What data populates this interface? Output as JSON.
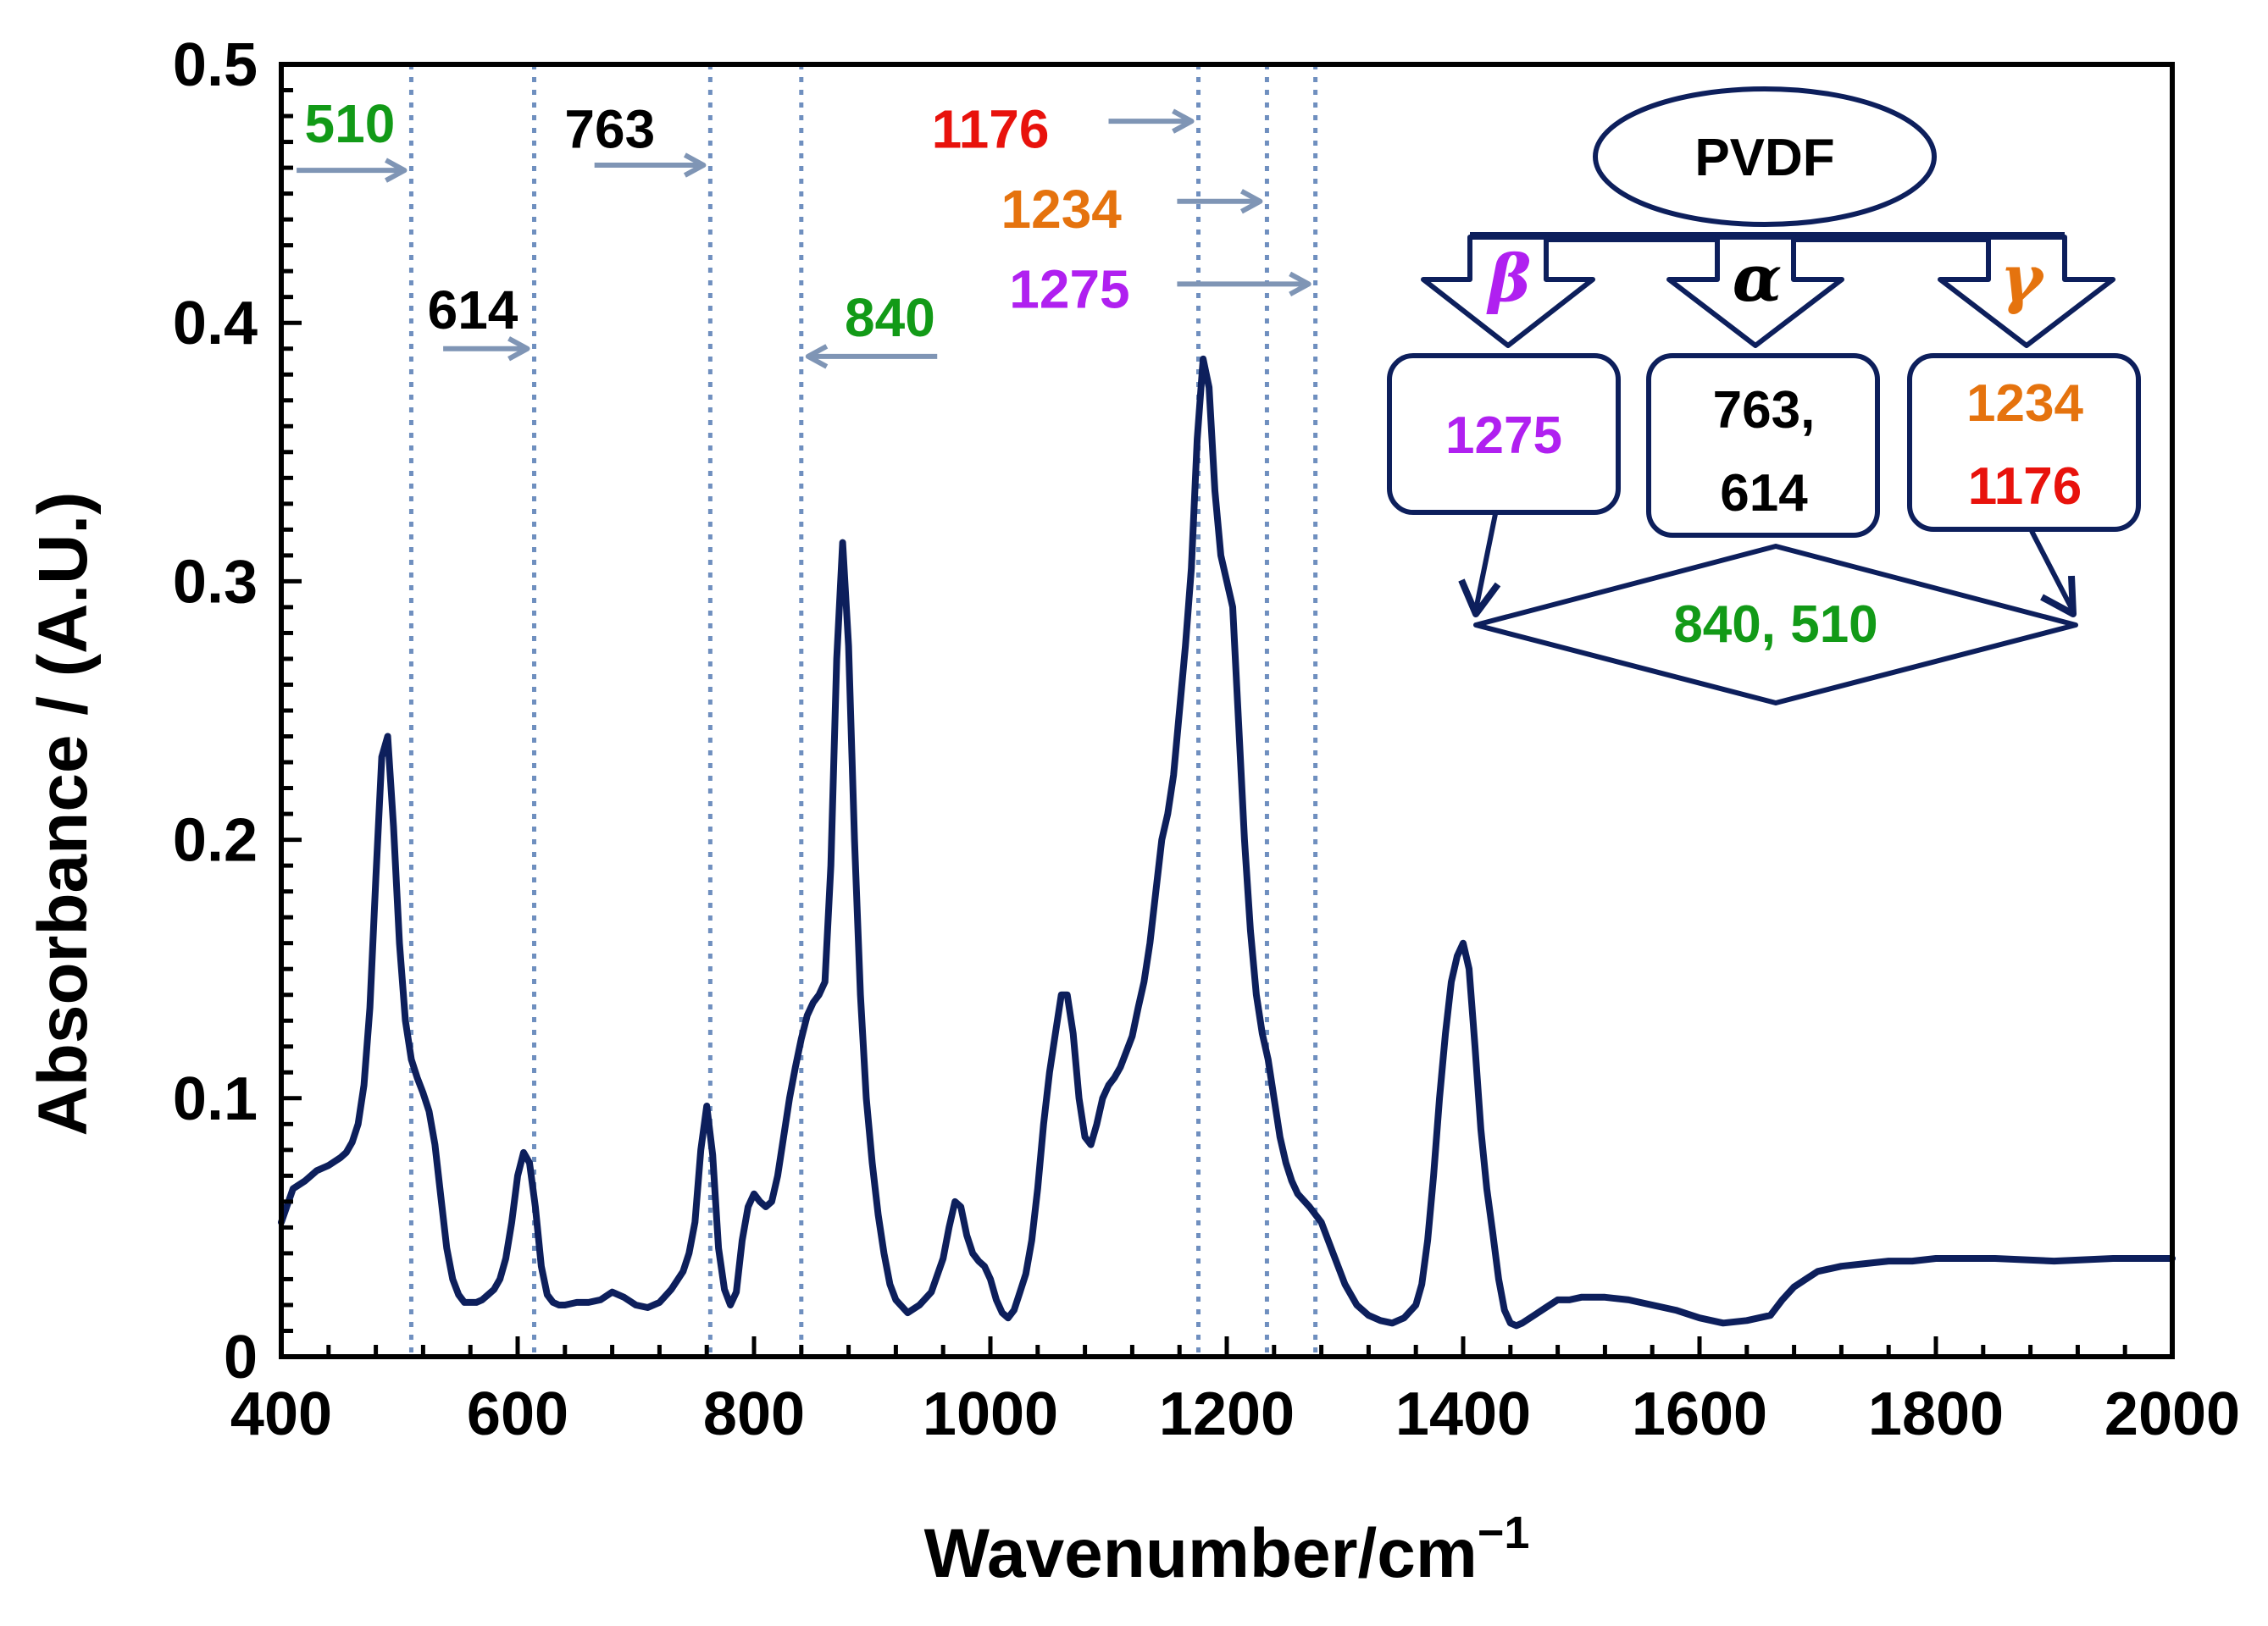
{
  "chart_data": {
    "type": "line",
    "title": "",
    "xlabel": "Wavenumber/cm",
    "xlabel_superscript": "−1",
    "ylabel": "Absorbance / (A.U.)",
    "xlim": [
      400,
      2000
    ],
    "ylim": [
      0,
      0.5
    ],
    "x_ticks": [
      400,
      600,
      800,
      1000,
      1200,
      1400,
      1600,
      1800,
      2000
    ],
    "x_tick_labels": [
      "400",
      "600",
      "800",
      "1000",
      "1200",
      "1400",
      "1600",
      "1800",
      "2000"
    ],
    "y_ticks": [
      0,
      0.1,
      0.2,
      0.3,
      0.4,
      0.5
    ],
    "y_tick_labels": [
      "0",
      "0.1",
      "0.2",
      "0.3",
      "0.4",
      "0.5"
    ],
    "grid": false,
    "series": [
      {
        "name": "PVDF",
        "color": "#0d1f5c",
        "x": [
          400,
          410,
          420,
          430,
          440,
          450,
          455,
          460,
          465,
          470,
          475,
          480,
          485,
          490,
          495,
          500,
          505,
          510,
          515,
          520,
          525,
          530,
          535,
          540,
          545,
          550,
          555,
          560,
          565,
          570,
          575,
          580,
          585,
          590,
          595,
          600,
          605,
          610,
          615,
          620,
          625,
          630,
          635,
          640,
          650,
          660,
          670,
          680,
          690,
          700,
          710,
          720,
          730,
          740,
          745,
          750,
          755,
          760,
          765,
          770,
          775,
          780,
          785,
          790,
          795,
          800,
          805,
          810,
          815,
          820,
          825,
          830,
          835,
          840,
          845,
          850,
          855,
          860,
          865,
          870,
          875,
          880,
          885,
          890,
          895,
          900,
          905,
          910,
          915,
          920,
          930,
          940,
          950,
          960,
          965,
          970,
          975,
          980,
          985,
          990,
          995,
          1000,
          1005,
          1010,
          1015,
          1020,
          1025,
          1030,
          1035,
          1040,
          1045,
          1050,
          1055,
          1060,
          1065,
          1070,
          1075,
          1080,
          1085,
          1090,
          1095,
          1100,
          1105,
          1110,
          1115,
          1120,
          1125,
          1130,
          1135,
          1140,
          1145,
          1150,
          1155,
          1160,
          1165,
          1170,
          1175,
          1180,
          1185,
          1190,
          1195,
          1200,
          1205,
          1210,
          1215,
          1220,
          1225,
          1230,
          1235,
          1240,
          1245,
          1250,
          1255,
          1260,
          1270,
          1280,
          1290,
          1300,
          1310,
          1320,
          1330,
          1340,
          1350,
          1360,
          1365,
          1370,
          1375,
          1380,
          1385,
          1390,
          1395,
          1400,
          1405,
          1410,
          1415,
          1420,
          1425,
          1430,
          1435,
          1440,
          1445,
          1450,
          1460,
          1470,
          1480,
          1490,
          1500,
          1520,
          1540,
          1560,
          1580,
          1600,
          1620,
          1640,
          1660,
          1670,
          1680,
          1690,
          1700,
          1720,
          1740,
          1760,
          1780,
          1800,
          1850,
          1900,
          1950,
          2000
        ],
        "y": [
          0.052,
          0.065,
          0.068,
          0.072,
          0.074,
          0.077,
          0.079,
          0.083,
          0.09,
          0.105,
          0.135,
          0.185,
          0.232,
          0.24,
          0.205,
          0.16,
          0.13,
          0.115,
          0.108,
          0.102,
          0.095,
          0.082,
          0.062,
          0.042,
          0.03,
          0.024,
          0.021,
          0.021,
          0.021,
          0.022,
          0.024,
          0.026,
          0.03,
          0.038,
          0.052,
          0.07,
          0.079,
          0.075,
          0.058,
          0.035,
          0.024,
          0.021,
          0.02,
          0.02,
          0.021,
          0.021,
          0.022,
          0.025,
          0.023,
          0.02,
          0.019,
          0.021,
          0.026,
          0.033,
          0.04,
          0.052,
          0.08,
          0.097,
          0.078,
          0.042,
          0.026,
          0.02,
          0.025,
          0.045,
          0.058,
          0.063,
          0.06,
          0.058,
          0.06,
          0.07,
          0.085,
          0.1,
          0.112,
          0.123,
          0.132,
          0.137,
          0.14,
          0.145,
          0.19,
          0.27,
          0.315,
          0.275,
          0.2,
          0.14,
          0.1,
          0.075,
          0.055,
          0.04,
          0.028,
          0.022,
          0.017,
          0.02,
          0.025,
          0.038,
          0.05,
          0.06,
          0.058,
          0.047,
          0.04,
          0.037,
          0.035,
          0.03,
          0.022,
          0.017,
          0.015,
          0.018,
          0.025,
          0.032,
          0.045,
          0.065,
          0.09,
          0.11,
          0.125,
          0.14,
          0.14,
          0.125,
          0.1,
          0.085,
          0.082,
          0.09,
          0.1,
          0.105,
          0.108,
          0.112,
          0.118,
          0.124,
          0.135,
          0.145,
          0.16,
          0.18,
          0.2,
          0.21,
          0.225,
          0.25,
          0.275,
          0.305,
          0.355,
          0.386,
          0.375,
          0.335,
          0.31,
          0.3,
          0.29,
          0.245,
          0.2,
          0.165,
          0.14,
          0.125,
          0.115,
          0.1,
          0.085,
          0.075,
          0.068,
          0.063,
          0.058,
          0.052,
          0.04,
          0.028,
          0.02,
          0.016,
          0.014,
          0.013,
          0.015,
          0.02,
          0.028,
          0.045,
          0.07,
          0.1,
          0.125,
          0.145,
          0.155,
          0.16,
          0.15,
          0.12,
          0.088,
          0.065,
          0.048,
          0.03,
          0.018,
          0.013,
          0.012,
          0.013,
          0.016,
          0.019,
          0.022,
          0.022,
          0.023,
          0.023,
          0.022,
          0.02,
          0.018,
          0.015,
          0.013,
          0.014,
          0.016,
          0.022,
          0.027,
          0.03,
          0.033,
          0.035,
          0.036,
          0.037,
          0.037,
          0.038,
          0.038,
          0.037,
          0.038,
          0.038
        ]
      }
    ],
    "reference_lines": [
      {
        "x": 510,
        "color": "#6f8fbf",
        "style": "dotted"
      },
      {
        "x": 614,
        "color": "#6f8fbf",
        "style": "dotted"
      },
      {
        "x": 763,
        "color": "#6f8fbf",
        "style": "dotted"
      },
      {
        "x": 840,
        "color": "#6f8fbf",
        "style": "dotted"
      },
      {
        "x": 1176,
        "color": "#6f8fbf",
        "style": "dotted"
      },
      {
        "x": 1234,
        "color": "#6f8fbf",
        "style": "dotted"
      },
      {
        "x": 1275,
        "color": "#6f8fbf",
        "style": "dotted"
      }
    ],
    "annotations": [
      {
        "text": "510",
        "color": "#129a17",
        "arrow_to": 510,
        "arrow_dir": "right",
        "label_x": 458,
        "label_y": 0.477,
        "arrow_from": 413,
        "arrow_y": 0.459
      },
      {
        "text": "614",
        "color": "#000000",
        "arrow_to": 614,
        "arrow_dir": "right",
        "label_x": 562,
        "label_y": 0.405,
        "arrow_from": 537,
        "arrow_y": 0.39
      },
      {
        "text": "763",
        "color": "#000000",
        "arrow_to": 763,
        "arrow_dir": "right",
        "label_x": 678,
        "label_y": 0.475,
        "arrow_from": 665,
        "arrow_y": 0.461
      },
      {
        "text": "840",
        "color": "#129a17",
        "arrow_to": 840,
        "arrow_dir": "left",
        "label_x": 915,
        "label_y": 0.402,
        "arrow_from": 955,
        "arrow_y": 0.387
      },
      {
        "text": "1176",
        "color": "#e8120c",
        "arrow_to": 1176,
        "arrow_dir": "right",
        "label_x": 1000,
        "label_y": 0.475,
        "arrow_from": 1100,
        "arrow_y": 0.478
      },
      {
        "text": "1234",
        "color": "#e5730e",
        "arrow_to": 1234,
        "arrow_dir": "right",
        "label_x": 1060,
        "label_y": 0.444,
        "arrow_from": 1158,
        "arrow_y": 0.447
      },
      {
        "text": "1275",
        "color": "#b020f0",
        "arrow_to": 1275,
        "arrow_dir": "right",
        "label_x": 1067,
        "label_y": 0.413,
        "arrow_from": 1158,
        "arrow_y": 0.415
      }
    ],
    "inset": {
      "root": "PVDF",
      "phases": [
        {
          "symbol": "β",
          "color": "#b020f0",
          "bands": [
            "1275"
          ],
          "band_colors": [
            "#b020f0"
          ]
        },
        {
          "symbol": "α",
          "color": "#000000",
          "bands": [
            "763,",
            "614"
          ],
          "band_colors": [
            "#000000",
            "#000000"
          ]
        },
        {
          "symbol": "γ",
          "color": "#e5730e",
          "bands": [
            "1234",
            "1176"
          ],
          "band_colors": [
            "#e5730e",
            "#e8120c"
          ]
        }
      ],
      "shared": "840, 510",
      "shared_color": "#129a17"
    }
  }
}
